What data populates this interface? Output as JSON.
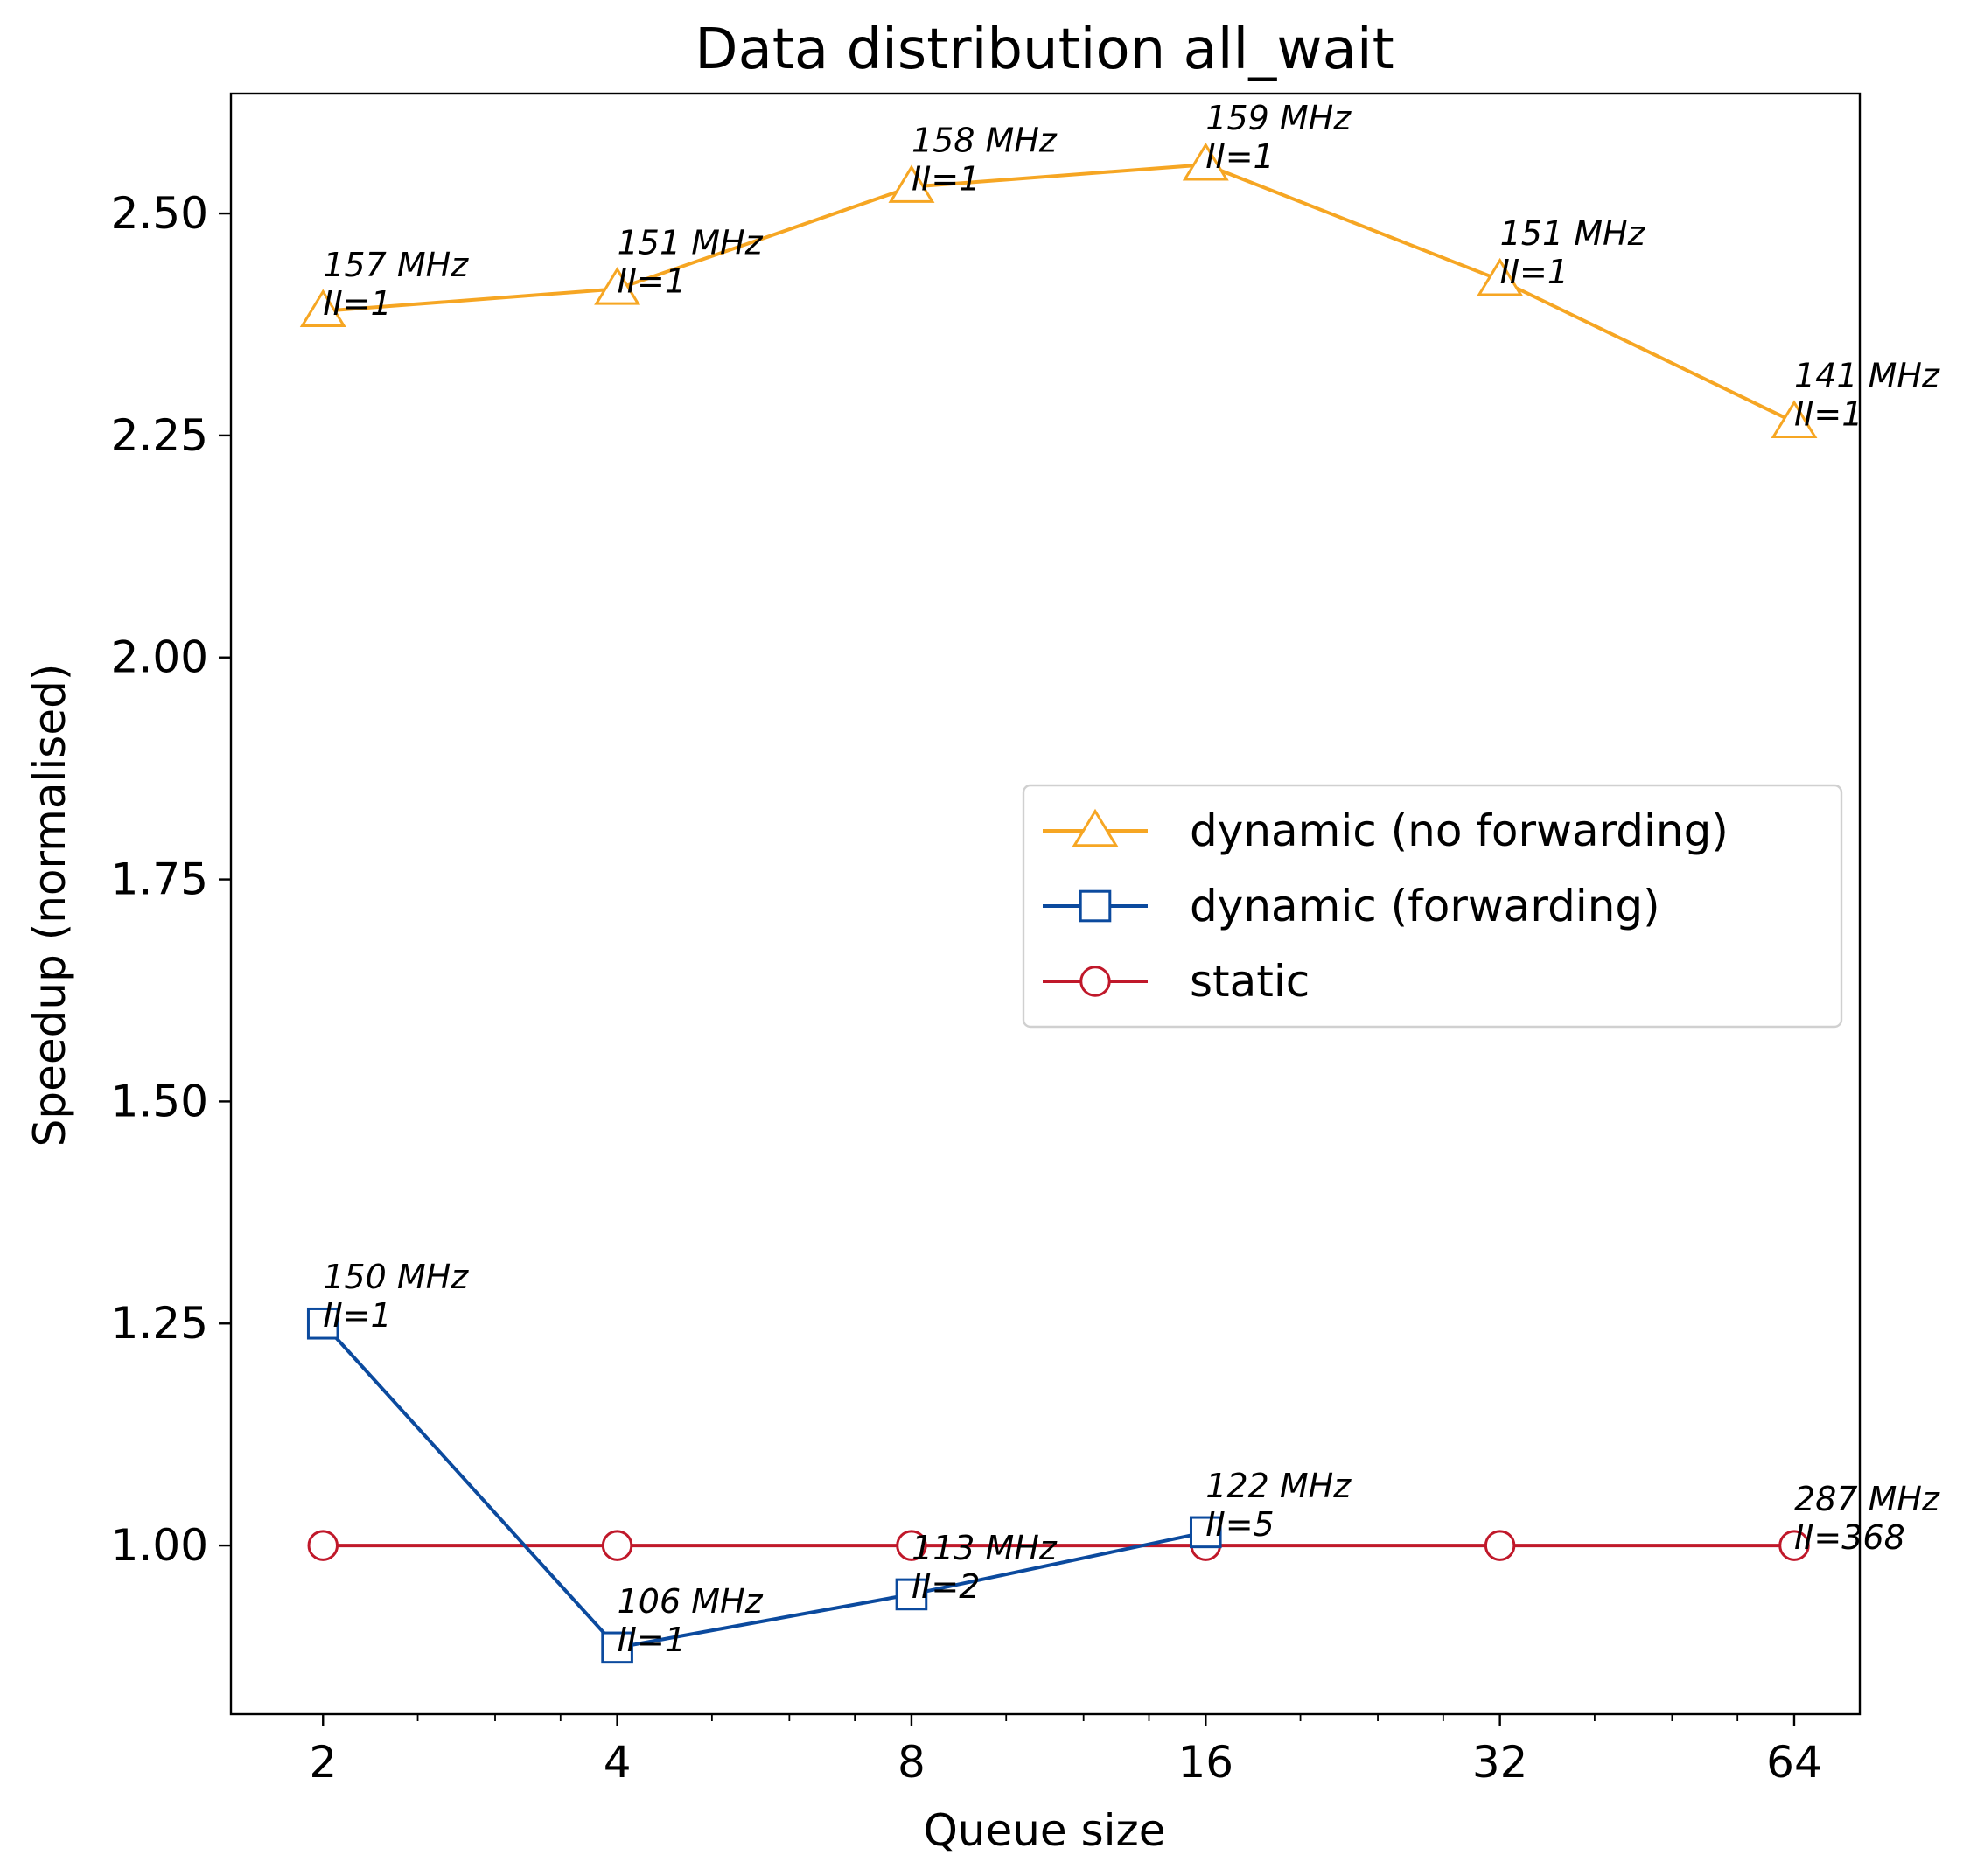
{
  "chart_data": {
    "type": "line",
    "title": "Data distribution all_wait",
    "xlabel": "Queue size",
    "ylabel": "Speedup (normalised)",
    "x_scale": "log2",
    "x": [
      2,
      4,
      8,
      16,
      32,
      64
    ],
    "x_tick_labels": [
      "2",
      "4",
      "8",
      "16",
      "32",
      "64"
    ],
    "xlim": [
      1.61,
      74.7
    ],
    "ylim": [
      0.81,
      2.635
    ],
    "y_ticks": [
      1.0,
      1.25,
      1.5,
      1.75,
      2.0,
      2.25,
      2.5
    ],
    "y_tick_labels": [
      "1.00",
      "1.25",
      "1.50",
      "1.75",
      "2.00",
      "2.25",
      "2.50"
    ],
    "grid": false,
    "legend_position": "center-right",
    "series": [
      {
        "name": "dynamic (no forwarding)",
        "color": "#F6A623",
        "marker": "triangle",
        "values": [
          2.39,
          2.415,
          2.53,
          2.555,
          2.425,
          2.265
        ],
        "annotations": [
          [
            "157 MHz",
            "II=1"
          ],
          [
            "151 MHz",
            "II=1"
          ],
          [
            "158 MHz",
            "II=1"
          ],
          [
            "159 MHz",
            "II=1"
          ],
          [
            "151 MHz",
            "II=1"
          ],
          [
            "141 MHz",
            "II=1"
          ]
        ]
      },
      {
        "name": "dynamic (forwarding)",
        "color": "#0B4A9E",
        "marker": "square",
        "x": [
          2,
          4,
          8,
          16
        ],
        "values": [
          1.25,
          0.885,
          0.945,
          1.015
        ],
        "annotations": [
          [
            "150 MHz",
            "II=1"
          ],
          [
            "106 MHz",
            "II=1"
          ],
          [
            "113 MHz",
            "II=2"
          ],
          [
            "122 MHz",
            "II=5"
          ]
        ]
      },
      {
        "name": "static",
        "color": "#C0182A",
        "marker": "circle",
        "values": [
          1.0,
          1.0,
          1.0,
          1.0,
          1.0,
          1.0
        ],
        "annotations": [
          null,
          null,
          null,
          null,
          null,
          [
            "287 MHz",
            "II=368"
          ]
        ]
      }
    ]
  }
}
